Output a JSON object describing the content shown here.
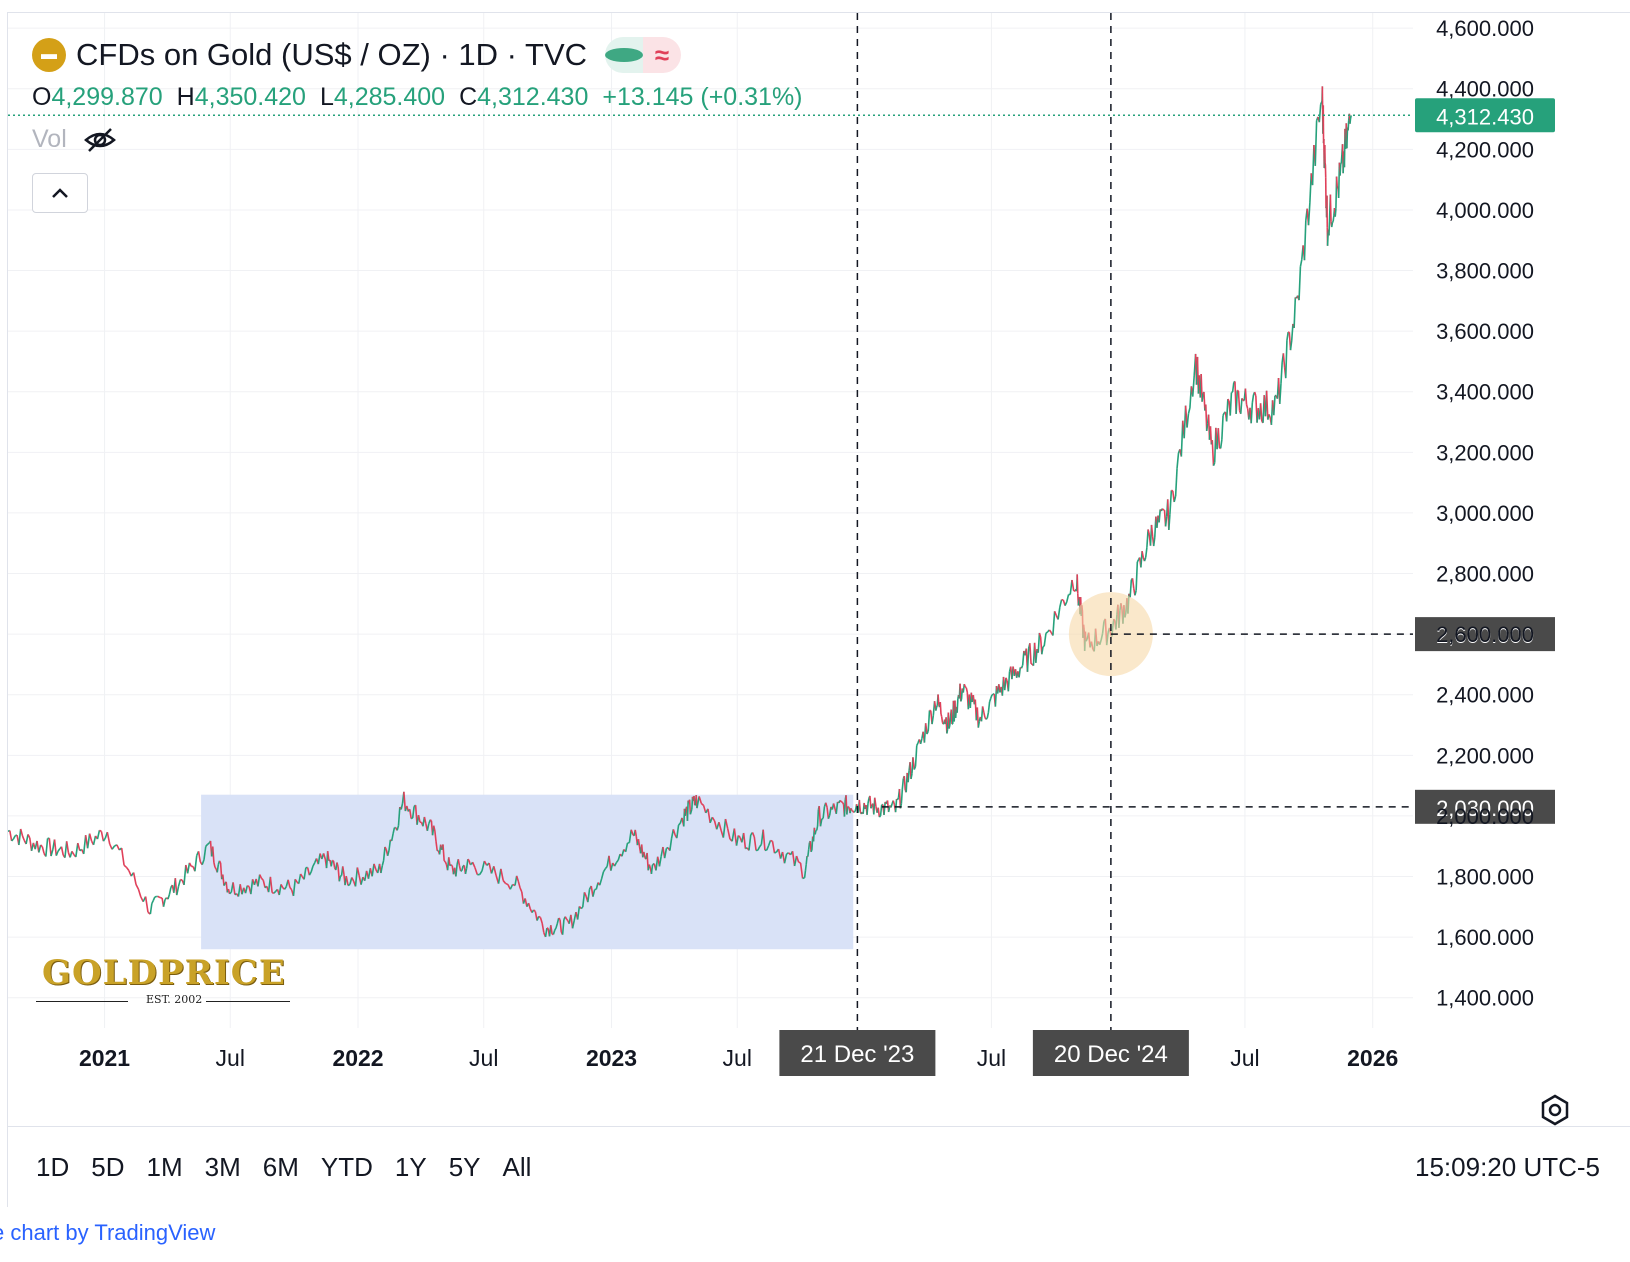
{
  "header": {
    "title": "CFDs on Gold (US$ / OZ) · 1D · TVC",
    "status_symbol": "≈",
    "ohlc": {
      "o_label": "O",
      "o_value": "4,299.870",
      "h_label": "H",
      "h_value": "4,350.420",
      "l_label": "L",
      "l_value": "4,285.400",
      "c_label": "C",
      "c_value": "4,312.430",
      "change": "+13.145 (+0.31%)"
    },
    "vol_label": "Vol"
  },
  "toolbar": {
    "ranges": [
      "1D",
      "5D",
      "1M",
      "3M",
      "6M",
      "YTD",
      "1Y",
      "5Y",
      "All"
    ],
    "time": "15:09:20 UTC-5"
  },
  "attribution": {
    "prefix": "e",
    "text": "chart by TradingView"
  },
  "logo": {
    "name": "GOLDPRICE",
    "sub": "EST. 2002"
  },
  "colors": {
    "up": "#26a17b",
    "down": "#e0405a",
    "current_price_label": "#26a17b",
    "marker_label": "#4a4a4a",
    "highlight_box": "#d7e0f7",
    "circle": "#f7d9a8"
  },
  "chart_data": {
    "type": "line",
    "title": "CFDs on Gold (US$ / OZ) · 1D · TVC",
    "ylim": [
      1300,
      4650
    ],
    "y_ticks": [
      1400,
      1600,
      1800,
      2000,
      2200,
      2400,
      2600,
      2800,
      3000,
      3200,
      3400,
      3600,
      3800,
      4000,
      4200,
      4400,
      4600
    ],
    "y_tick_labels": [
      "1,400.000",
      "1,600.000",
      "1,800.000",
      "2,000.000",
      "2,200.000",
      "2,400.000",
      "2,600.000",
      "2,800.000",
      "3,000.000",
      "3,200.000",
      "3,400.000",
      "3,600.000",
      "3,800.000",
      "4,000.000",
      "4,200.000",
      "4,400.000",
      "4,600.000"
    ],
    "x_range": [
      "2020-08-15",
      "2026-02-28"
    ],
    "x_ticks": [
      {
        "date": "2021-01-01",
        "label": "2021",
        "bold": true
      },
      {
        "date": "2021-07-01",
        "label": "Jul",
        "bold": false
      },
      {
        "date": "2022-01-01",
        "label": "2022",
        "bold": true
      },
      {
        "date": "2022-07-01",
        "label": "Jul",
        "bold": false
      },
      {
        "date": "2023-01-01",
        "label": "2023",
        "bold": true
      },
      {
        "date": "2023-07-01",
        "label": "Jul",
        "bold": false
      },
      {
        "date": "2024-07-01",
        "label": "Jul",
        "bold": false
      },
      {
        "date": "2025-07-01",
        "label": "Jul",
        "bold": false
      },
      {
        "date": "2026-01-01",
        "label": "2026",
        "bold": true
      }
    ],
    "series": [
      {
        "x": [
          "2020-08-15",
          "2020-10-01",
          "2020-11-15",
          "2021-01-05",
          "2021-03-08",
          "2021-04-15",
          "2021-06-01",
          "2021-06-30",
          "2021-08-15",
          "2021-09-30",
          "2021-11-15",
          "2021-12-15",
          "2022-02-01",
          "2022-03-08",
          "2022-04-15",
          "2022-05-15",
          "2022-06-15",
          "2022-08-15",
          "2022-09-28",
          "2022-11-01",
          "2022-12-15",
          "2023-02-01",
          "2023-03-01",
          "2023-04-15",
          "2023-05-04",
          "2023-06-30",
          "2023-08-15",
          "2023-10-06",
          "2023-10-27",
          "2023-11-30",
          "2023-12-21",
          "2024-01-15",
          "2024-02-14",
          "2024-03-10",
          "2024-04-12",
          "2024-05-01",
          "2024-05-20",
          "2024-06-15",
          "2024-07-15",
          "2024-08-15",
          "2024-09-15",
          "2024-10-30",
          "2024-11-14",
          "2024-12-20",
          "2025-01-15",
          "2025-02-15",
          "2025-03-15",
          "2025-04-21",
          "2025-05-15",
          "2025-06-15",
          "2025-07-15",
          "2025-08-15",
          "2025-09-15",
          "2025-10-20",
          "2025-10-28",
          "2025-11-15",
          "2025-12-01"
        ],
        "y": [
          1950,
          1900,
          1880,
          1950,
          1690,
          1770,
          1900,
          1760,
          1780,
          1760,
          1860,
          1790,
          1820,
          2050,
          1960,
          1820,
          1840,
          1780,
          1630,
          1640,
          1800,
          1940,
          1820,
          2000,
          2050,
          1920,
          1920,
          1820,
          2000,
          2030,
          2040,
          2030,
          2020,
          2170,
          2380,
          2300,
          2420,
          2320,
          2420,
          2500,
          2580,
          2790,
          2560,
          2620,
          2710,
          2930,
          3000,
          3500,
          3200,
          3380,
          3350,
          3350,
          3700,
          4380,
          3950,
          4100,
          4312
        ]
      }
    ],
    "current_price": 4312.43,
    "current_price_label": "4,312.430",
    "horizontal_markers": [
      {
        "value": 2600,
        "label": "2,600.000"
      },
      {
        "value": 2030,
        "label": "2,030.000"
      }
    ],
    "vertical_markers": [
      {
        "date": "2023-12-21",
        "label": "21 Dec '23"
      },
      {
        "date": "2024-12-20",
        "label": "20 Dec '24"
      }
    ],
    "highlight_range": {
      "x_start": "2021-05-20",
      "x_end": "2023-12-15",
      "y_low": 1560,
      "y_high": 2070
    },
    "circle_marker": {
      "date": "2024-12-20",
      "value": 2600
    }
  }
}
